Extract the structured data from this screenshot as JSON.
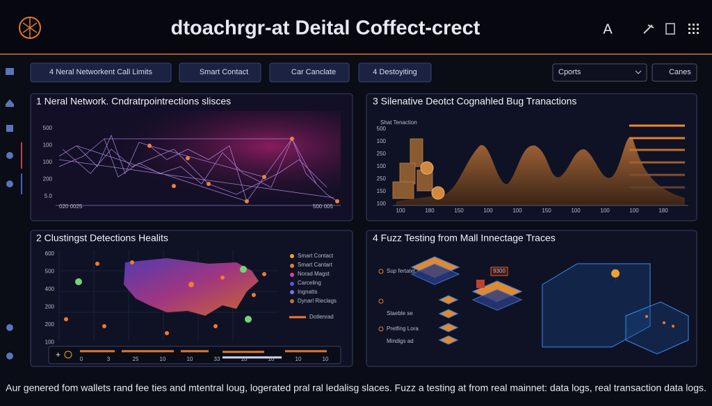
{
  "header": {
    "title": "dtoachrgr-at Deital Coffect-crect"
  },
  "toolbar": {
    "buttons": [
      "4 Neral Networkent Call Limits",
      "Smart Contact",
      "Car Canclate",
      "4 Destoyiting"
    ],
    "dropdown": "Cports",
    "action": "Canes"
  },
  "panels": [
    {
      "title": "1 Neral Network. Cndratrpointrections slisces",
      "y_labels": [
        "500",
        "100",
        "100",
        "200",
        "5.0"
      ],
      "x_labels": [
        "020 0025",
        "500 005"
      ]
    },
    {
      "title": "3 Silenative Deotct Cognahled Bug Tranactions",
      "subtitle": "Shat Tenaction",
      "y_labels": [
        "500",
        "100",
        "250",
        "100",
        "250",
        "150",
        "100"
      ],
      "x_labels": [
        "100",
        "180",
        "150",
        "100",
        "100",
        "150",
        "100",
        "100",
        "100",
        "180"
      ]
    },
    {
      "title": "2 Clustingst Detections Healits",
      "y_labels": [
        "600",
        "500",
        "400",
        "200",
        "200",
        "100"
      ],
      "legend": [
        "Smart Contact",
        "Smart Cantart",
        "Norad Magst",
        "Carceling",
        "Ingnatts",
        "Dynarl Rieclags"
      ],
      "legend_line": "Dotlenrad",
      "x_labels": [
        "0",
        "3",
        "25",
        "10",
        "10",
        "33",
        "10",
        "10",
        "10",
        "10"
      ]
    },
    {
      "title": "4 Fuzz Testing from Mall Innectage Traces",
      "labels": [
        "Sup fertatel",
        "Staeble se",
        "Pretfing Lora",
        "Mindigs ad"
      ],
      "tag": "9300"
    }
  ],
  "footer": "Aur genered fom wallets rand fee ties and mtentral loug, logerated pral ral ledalisg slaces. Fuzz a testing at from real mainnet: data logs, real transaction data logs."
}
